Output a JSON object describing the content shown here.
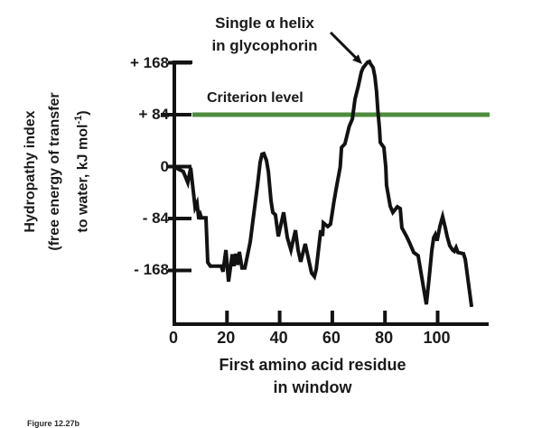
{
  "annotation": {
    "line1": "Single α helix",
    "line2": "in glycophorin"
  },
  "criterion": {
    "label": "Criterion level",
    "value": 84
  },
  "y_axis": {
    "title_line1": "Hydropathy index",
    "title_line2": "(free energy of transfer",
    "title_line3_pre": "to water, kJ mol",
    "title_line3_sup": "-1",
    "title_line3_post": ")",
    "ticks": [
      {
        "label": "+ 168",
        "value": 168
      },
      {
        "label": "+ 84",
        "value": 84
      },
      {
        "label": "0",
        "value": 0
      },
      {
        "label": "- 84",
        "value": -84
      },
      {
        "label": "- 168",
        "value": -168
      }
    ]
  },
  "x_axis": {
    "title_line1": "First amino acid residue",
    "title_line2": "in window",
    "ticks": [
      {
        "label": "0",
        "value": 0
      },
      {
        "label": "20",
        "value": 20
      },
      {
        "label": "40",
        "value": 40
      },
      {
        "label": "60",
        "value": 60
      },
      {
        "label": "80",
        "value": 80
      },
      {
        "label": "100",
        "value": 100
      }
    ]
  },
  "caption": "Figure 12.27b",
  "colors": {
    "criterion_green": "#4e8c3e",
    "curve": "#121212",
    "text": "#1a1a1a"
  },
  "chart_data": {
    "type": "line",
    "title": "Hydropathy plot of glycophorin",
    "xlabel": "First amino acid residue in window",
    "ylabel": "Hydropathy index (free energy of transfer to water, kJ mol-1)",
    "xlim": [
      0,
      120
    ],
    "ylim": [
      -250,
      190
    ],
    "grid": false,
    "criterion_level": 84,
    "annotation_text": "Single α helix in glycophorin",
    "series": [
      {
        "name": "hydropathy-index",
        "points": [
          [
            0,
            0
          ],
          [
            1.5,
            -4
          ],
          [
            3.4,
            -8
          ],
          [
            5.1,
            -26
          ],
          [
            6.2,
            -2
          ],
          [
            7.9,
            -66
          ],
          [
            8.6,
            -59
          ],
          [
            9.3,
            -85
          ],
          [
            9.9,
            -78
          ],
          [
            10.3,
            -83
          ],
          [
            12,
            -83
          ],
          [
            12.7,
            -155
          ],
          [
            13.7,
            -161
          ],
          [
            17.8,
            -161
          ],
          [
            18.5,
            -170
          ],
          [
            19.6,
            -135
          ],
          [
            20.6,
            -186
          ],
          [
            22,
            -142
          ],
          [
            22.6,
            -161
          ],
          [
            23.3,
            -141
          ],
          [
            24,
            -159
          ],
          [
            24.7,
            -138
          ],
          [
            25.7,
            -164
          ],
          [
            26.8,
            -164
          ],
          [
            28.8,
            -122
          ],
          [
            30.5,
            -66
          ],
          [
            31.6,
            -30
          ],
          [
            32.6,
            7
          ],
          [
            33.3,
            20
          ],
          [
            34,
            21
          ],
          [
            35,
            10
          ],
          [
            35.7,
            -8
          ],
          [
            36.7,
            -55
          ],
          [
            37.4,
            -74
          ],
          [
            38.4,
            -78
          ],
          [
            39.5,
            -113
          ],
          [
            41.5,
            -74
          ],
          [
            42.9,
            -115
          ],
          [
            44.3,
            -135
          ],
          [
            46,
            -103
          ],
          [
            47,
            -135
          ],
          [
            48,
            -154
          ],
          [
            49.7,
            -125
          ],
          [
            52.1,
            -172
          ],
          [
            53.2,
            -178
          ],
          [
            53.9,
            -166
          ],
          [
            55.6,
            -103
          ],
          [
            56.3,
            -112
          ],
          [
            56.6,
            -91
          ],
          [
            58.3,
            -97
          ],
          [
            59.3,
            -93
          ],
          [
            60,
            -74
          ],
          [
            60.7,
            -55
          ],
          [
            61.7,
            -30
          ],
          [
            63,
            -1
          ],
          [
            63.5,
            31
          ],
          [
            64.8,
            37
          ],
          [
            66.4,
            65
          ],
          [
            67.6,
            77
          ],
          [
            68.6,
            109
          ],
          [
            69.9,
            131
          ],
          [
            71,
            153
          ],
          [
            71.7,
            160
          ],
          [
            73.4,
            169
          ],
          [
            74.1,
            170
          ],
          [
            74.4,
            167
          ],
          [
            75.5,
            160
          ],
          [
            76.2,
            145
          ],
          [
            76.8,
            121
          ],
          [
            77.3,
            91
          ],
          [
            77.9,
            62
          ],
          [
            78.2,
            39
          ],
          [
            79.6,
            31
          ],
          [
            80.3,
            -1
          ],
          [
            80.6,
            -30
          ],
          [
            82,
            -64
          ],
          [
            83,
            -74
          ],
          [
            84.7,
            -65
          ],
          [
            85.8,
            -68
          ],
          [
            86.4,
            -99
          ],
          [
            88.2,
            -113
          ],
          [
            89.2,
            -122
          ],
          [
            90.9,
            -139
          ],
          [
            92.6,
            -144
          ],
          [
            95.7,
            -223
          ],
          [
            96.7,
            -183
          ],
          [
            97.8,
            -135
          ],
          [
            98.5,
            -115
          ],
          [
            99.1,
            -110
          ],
          [
            99.8,
            -120
          ],
          [
            100.9,
            -96
          ],
          [
            101.9,
            -81
          ],
          [
            102.9,
            -99
          ],
          [
            103.6,
            -113
          ],
          [
            104.6,
            -128
          ],
          [
            105.7,
            -135
          ],
          [
            106.3,
            -137
          ],
          [
            107,
            -131
          ],
          [
            107.7,
            -139
          ],
          [
            109.8,
            -141
          ],
          [
            110.5,
            -150
          ],
          [
            112.9,
            -227
          ]
        ]
      }
    ]
  }
}
